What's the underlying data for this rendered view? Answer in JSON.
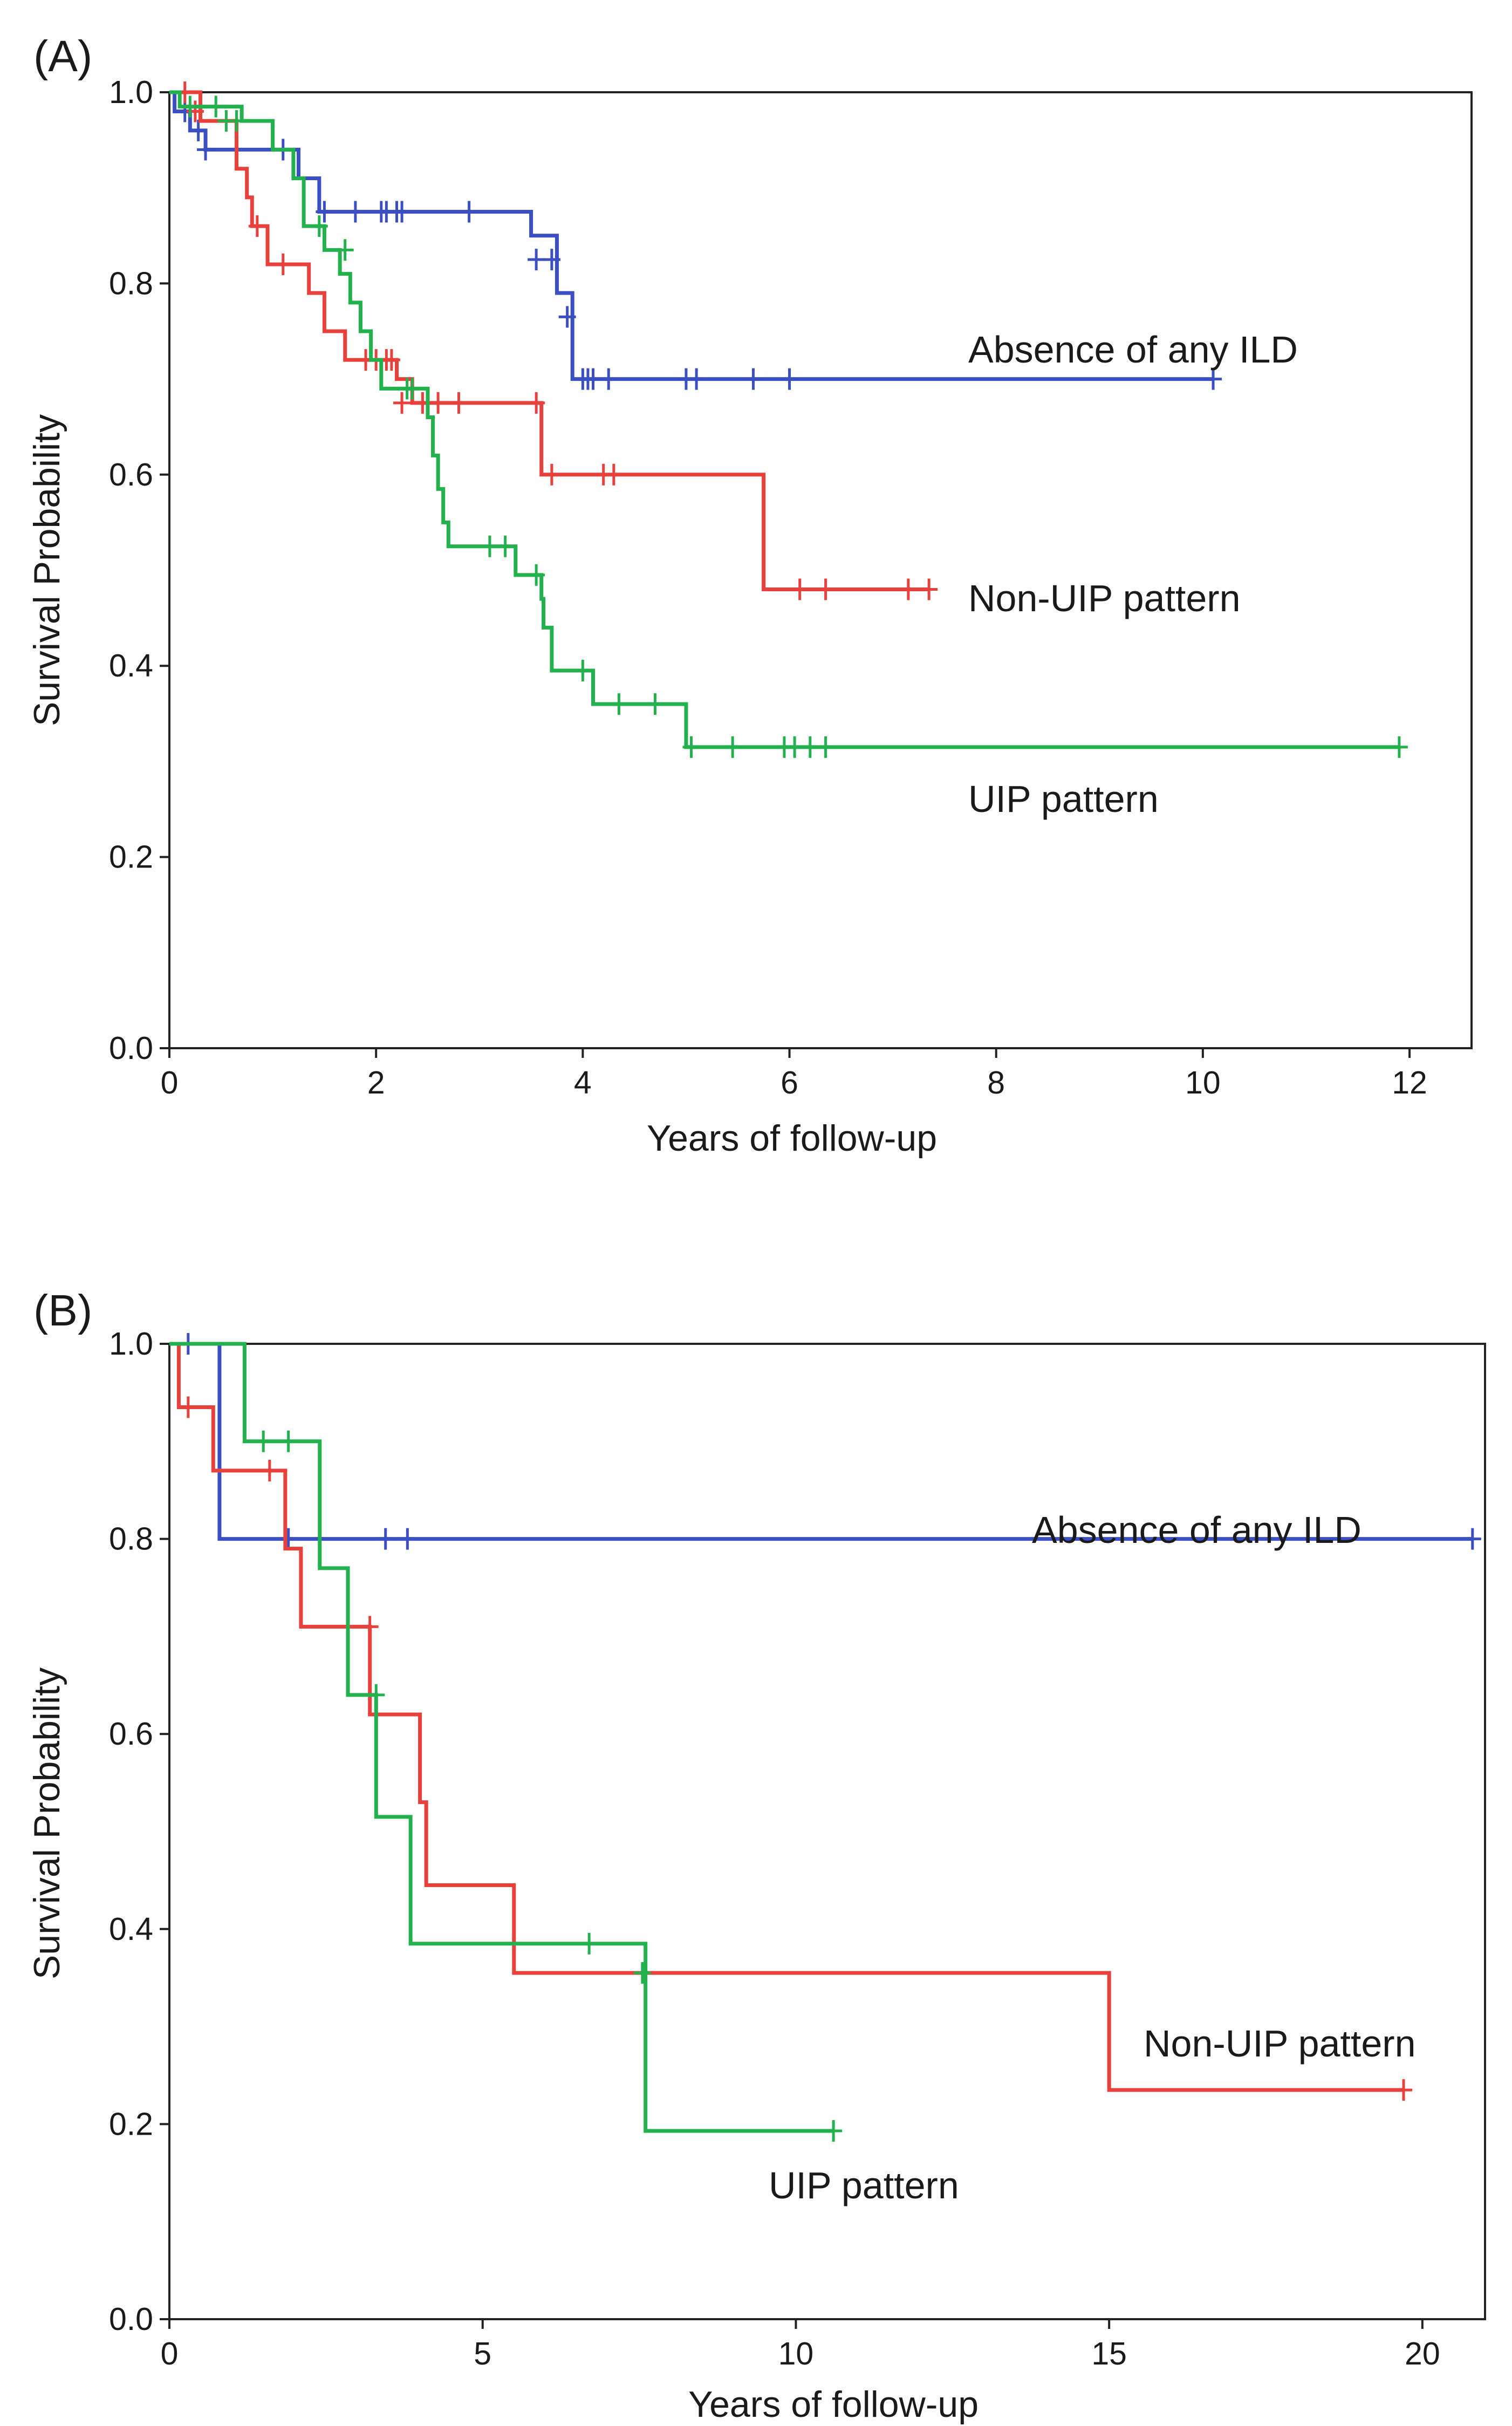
{
  "chart_data": [
    {
      "type": "line",
      "step": true,
      "panel_label": "(A)",
      "xlabel": "Years of follow-up",
      "ylabel": "Survival Probability",
      "xlim": [
        0,
        12.6
      ],
      "ylim": [
        0,
        1.0
      ],
      "xticks": [
        0,
        2,
        4,
        6,
        8,
        10,
        12
      ],
      "yticks": [
        0.0,
        0.2,
        0.4,
        0.6,
        0.8,
        1.0
      ],
      "xtick_labels": [
        "0",
        "2",
        "4",
        "6",
        "8",
        "10",
        "12"
      ],
      "ytick_labels": [
        "0.0",
        "0.2",
        "0.4",
        "0.6",
        "0.8",
        "1.0"
      ],
      "grid": false,
      "legend": "curve labels placed beside each curve",
      "series": [
        {
          "name": "Absence of any ILD",
          "color": "#3b4fc4",
          "steps": [
            [
              0,
              1.0
            ],
            [
              0.05,
              0.98
            ],
            [
              0.2,
              0.96
            ],
            [
              0.35,
              0.94
            ],
            [
              1.25,
              0.91
            ],
            [
              1.45,
              0.875
            ],
            [
              3.5,
              0.85
            ],
            [
              3.75,
              0.79
            ],
            [
              3.9,
              0.7
            ],
            [
              10.1,
              0.7
            ]
          ],
          "censored": [
            [
              0.15,
              0.98
            ],
            [
              0.28,
              0.96
            ],
            [
              0.35,
              0.94
            ],
            [
              1.1,
              0.94
            ],
            [
              1.5,
              0.875
            ],
            [
              1.8,
              0.875
            ],
            [
              2.05,
              0.875
            ],
            [
              2.1,
              0.875
            ],
            [
              2.2,
              0.875
            ],
            [
              2.25,
              0.875
            ],
            [
              2.9,
              0.875
            ],
            [
              3.55,
              0.825
            ],
            [
              3.7,
              0.825
            ],
            [
              3.85,
              0.765
            ],
            [
              4.0,
              0.7
            ],
            [
              4.05,
              0.7
            ],
            [
              4.1,
              0.7
            ],
            [
              4.25,
              0.7
            ],
            [
              5.0,
              0.7
            ],
            [
              5.1,
              0.7
            ],
            [
              5.65,
              0.7
            ],
            [
              6.0,
              0.7
            ],
            [
              10.1,
              0.7
            ]
          ]
        },
        {
          "name": "Non-UIP pattern",
          "color": "#e8413c",
          "steps": [
            [
              0,
              1.0
            ],
            [
              0.3,
              0.97
            ],
            [
              0.65,
              0.92
            ],
            [
              0.75,
              0.89
            ],
            [
              0.8,
              0.86
            ],
            [
              0.95,
              0.82
            ],
            [
              1.35,
              0.79
            ],
            [
              1.5,
              0.75
            ],
            [
              1.7,
              0.72
            ],
            [
              2.2,
              0.7
            ],
            [
              2.35,
              0.675
            ],
            [
              3.6,
              0.6
            ],
            [
              5.75,
              0.48
            ],
            [
              7.35,
              0.48
            ]
          ],
          "censored": [
            [
              0.15,
              1.0
            ],
            [
              0.25,
              0.98
            ],
            [
              0.85,
              0.86
            ],
            [
              1.1,
              0.82
            ],
            [
              1.9,
              0.72
            ],
            [
              2.0,
              0.72
            ],
            [
              2.1,
              0.72
            ],
            [
              2.15,
              0.72
            ],
            [
              2.25,
              0.675
            ],
            [
              2.45,
              0.675
            ],
            [
              2.6,
              0.675
            ],
            [
              2.8,
              0.675
            ],
            [
              3.55,
              0.675
            ],
            [
              3.7,
              0.6
            ],
            [
              4.2,
              0.6
            ],
            [
              4.3,
              0.6
            ],
            [
              6.1,
              0.48
            ],
            [
              6.35,
              0.48
            ],
            [
              7.15,
              0.48
            ],
            [
              7.35,
              0.48
            ]
          ]
        },
        {
          "name": "UIP pattern",
          "color": "#22b14c",
          "steps": [
            [
              0,
              1.0
            ],
            [
              0.1,
              0.985
            ],
            [
              0.7,
              0.97
            ],
            [
              1.0,
              0.94
            ],
            [
              1.2,
              0.91
            ],
            [
              1.3,
              0.86
            ],
            [
              1.5,
              0.835
            ],
            [
              1.65,
              0.81
            ],
            [
              1.75,
              0.78
            ],
            [
              1.85,
              0.75
            ],
            [
              1.95,
              0.72
            ],
            [
              2.05,
              0.69
            ],
            [
              2.5,
              0.66
            ],
            [
              2.55,
              0.62
            ],
            [
              2.6,
              0.585
            ],
            [
              2.65,
              0.55
            ],
            [
              2.7,
              0.525
            ],
            [
              3.35,
              0.495
            ],
            [
              3.6,
              0.47
            ],
            [
              3.62,
              0.44
            ],
            [
              3.7,
              0.395
            ],
            [
              4.1,
              0.36
            ],
            [
              5.0,
              0.315
            ],
            [
              11.9,
              0.315
            ]
          ],
          "censored": [
            [
              0.2,
              0.985
            ],
            [
              0.45,
              0.985
            ],
            [
              0.55,
              0.97
            ],
            [
              0.65,
              0.97
            ],
            [
              1.45,
              0.86
            ],
            [
              1.7,
              0.835
            ],
            [
              2.3,
              0.69
            ],
            [
              2.35,
              0.69
            ],
            [
              3.1,
              0.525
            ],
            [
              3.25,
              0.525
            ],
            [
              3.55,
              0.495
            ],
            [
              4.0,
              0.395
            ],
            [
              4.35,
              0.36
            ],
            [
              4.7,
              0.36
            ],
            [
              5.05,
              0.315
            ],
            [
              5.45,
              0.315
            ],
            [
              5.95,
              0.315
            ],
            [
              6.05,
              0.315
            ],
            [
              6.2,
              0.315
            ],
            [
              6.35,
              0.315
            ],
            [
              11.9,
              0.315
            ]
          ]
        }
      ],
      "curve_labels": [
        "Absence of any ILD",
        "Non-UIP pattern",
        "UIP pattern"
      ]
    },
    {
      "type": "line",
      "step": true,
      "panel_label": "(B)",
      "xlabel": "Years of follow-up",
      "ylabel": "Survival Probability",
      "xlim": [
        0,
        21
      ],
      "ylim": [
        0,
        1.0
      ],
      "xticks": [
        0,
        5,
        10,
        15,
        20
      ],
      "yticks": [
        0.0,
        0.2,
        0.4,
        0.6,
        0.8,
        1.0
      ],
      "xtick_labels": [
        "0",
        "5",
        "10",
        "15",
        "20"
      ],
      "ytick_labels": [
        "0.0",
        "0.2",
        "0.4",
        "0.6",
        "0.8",
        "1.0"
      ],
      "grid": false,
      "legend": "curve labels placed beside each curve",
      "series": [
        {
          "name": "Absence of any ILD",
          "color": "#3b4fc4",
          "steps": [
            [
              0,
              1.0
            ],
            [
              0.8,
              0.8
            ],
            [
              20.8,
              0.8
            ]
          ],
          "censored": [
            [
              0.3,
              1.0
            ],
            [
              1.9,
              0.8
            ],
            [
              3.45,
              0.8
            ],
            [
              3.8,
              0.8
            ],
            [
              20.8,
              0.8
            ]
          ]
        },
        {
          "name": "Non-UIP pattern",
          "color": "#e8413c",
          "steps": [
            [
              0,
              1.0
            ],
            [
              0.15,
              0.935
            ],
            [
              0.7,
              0.87
            ],
            [
              1.85,
              0.79
            ],
            [
              2.1,
              0.71
            ],
            [
              3.2,
              0.62
            ],
            [
              4.0,
              0.53
            ],
            [
              4.1,
              0.445
            ],
            [
              5.5,
              0.355
            ],
            [
              15.0,
              0.235
            ],
            [
              19.7,
              0.235
            ]
          ],
          "censored": [
            [
              0.3,
              0.935
            ],
            [
              1.6,
              0.87
            ],
            [
              3.2,
              0.71
            ],
            [
              19.7,
              0.235
            ]
          ]
        },
        {
          "name": "UIP pattern",
          "color": "#22b14c",
          "steps": [
            [
              0,
              1.0
            ],
            [
              1.2,
              0.9
            ],
            [
              2.4,
              0.77
            ],
            [
              2.85,
              0.64
            ],
            [
              3.3,
              0.515
            ],
            [
              3.85,
              0.385
            ],
            [
              7.6,
              0.193
            ],
            [
              10.6,
              0.193
            ]
          ],
          "censored": [
            [
              1.5,
              0.9
            ],
            [
              1.9,
              0.9
            ],
            [
              3.3,
              0.64
            ],
            [
              6.7,
              0.385
            ],
            [
              7.55,
              0.355
            ],
            [
              10.6,
              0.193
            ]
          ]
        }
      ],
      "curve_labels": [
        "Absence of any ILD",
        "Non-UIP pattern",
        "UIP pattern"
      ]
    }
  ]
}
